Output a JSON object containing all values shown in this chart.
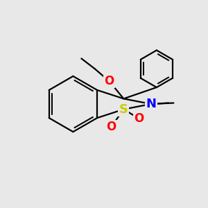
{
  "background_color": "#e8e8e8",
  "bond_color": "#000000",
  "S_color": "#cccc00",
  "N_color": "#0000ff",
  "O_color": "#ff0000",
  "C_color": "#000000",
  "bond_width": 1.6,
  "figsize": [
    3.0,
    3.0
  ],
  "dpi": 100,
  "xlim": [
    0,
    10
  ],
  "ylim": [
    0,
    10
  ]
}
